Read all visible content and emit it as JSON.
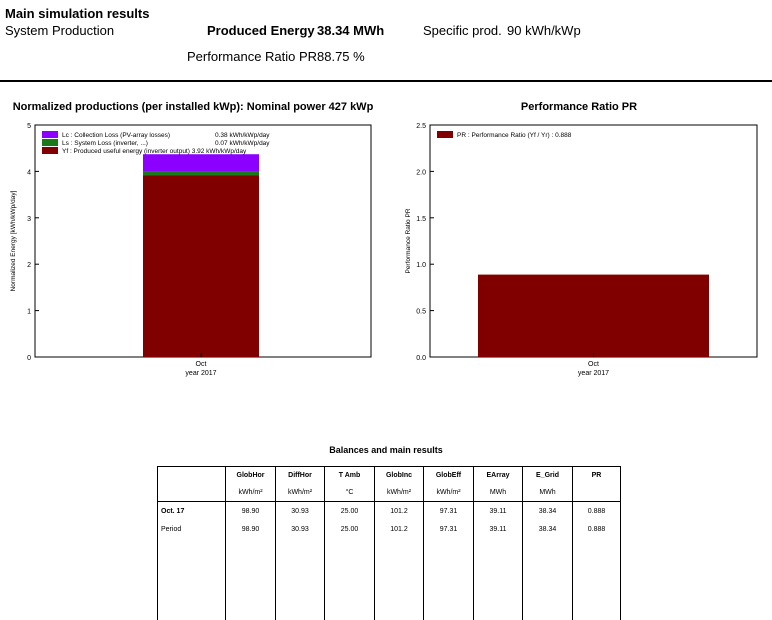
{
  "header": {
    "title": "Main simulation results",
    "system_production": "System Production",
    "produced_energy_label": "Produced Energy",
    "produced_energy_value": "38.34 MWh",
    "specific_prod_label": "Specific prod.",
    "specific_prod_value": "90 kWh/kWp",
    "performance_ratio_label": "Performance Ratio PR",
    "performance_ratio_value": "88.75 %"
  },
  "chart_data": [
    {
      "type": "bar",
      "stacked": true,
      "title": "Normalized productions (per installed kWp):  Nominal power 427 kWp",
      "ylabel": "Normalized Energy [kWh/kWp/day]",
      "xlabel": "year 2017",
      "categories": [
        "Oct"
      ],
      "ylim": [
        0,
        5
      ],
      "yticks": [
        "0",
        "1",
        "2",
        "3",
        "4",
        "5"
      ],
      "legend_position": "top-left",
      "series": [
        {
          "name": "Yf : Produced useful energy  (inverter output)  3.92 kWh/kWp/day",
          "values": [
            3.92
          ],
          "color": "#800000"
        },
        {
          "name": "Ls : System Loss  (inverter, ...)",
          "value_label": "0.07 kWh/kWp/day",
          "values": [
            0.07
          ],
          "color": "#1a7a1a"
        },
        {
          "name": "Lc : Collection Loss (PV-array losses)",
          "value_label": "0.38 kWh/kWp/day",
          "values": [
            0.38
          ],
          "color": "#8b00ff"
        }
      ]
    },
    {
      "type": "bar",
      "title": "Performance Ratio PR",
      "ylabel": "Performance Ratio PR",
      "xlabel": "year 2017",
      "categories": [
        "Oct"
      ],
      "ylim": [
        0,
        2.5
      ],
      "yticks": [
        "0.0",
        "0.5",
        "1.0",
        "1.5",
        "2.0",
        "2.5"
      ],
      "legend_position": "top-left",
      "series": [
        {
          "name": "PR : Performance Ratio (Yf / Yr) :  0.888",
          "values": [
            0.888
          ],
          "color": "#800000"
        }
      ]
    }
  ],
  "table": {
    "title": "Balances and main results",
    "columns": [
      "",
      "GlobHor",
      "DiffHor",
      "T Amb",
      "GlobInc",
      "GlobEff",
      "EArray",
      "E_Grid",
      "PR"
    ],
    "units": [
      "",
      "kWh/m²",
      "kWh/m²",
      "°C",
      "kWh/m²",
      "kWh/m²",
      "MWh",
      "MWh",
      ""
    ],
    "rows": [
      [
        "Oct.  17",
        "98.90",
        "30.93",
        "25.00",
        "101.2",
        "97.31",
        "39.11",
        "38.34",
        "0.888"
      ],
      [
        "Period",
        "98.90",
        "30.93",
        "25.00",
        "101.2",
        "97.31",
        "39.11",
        "38.34",
        "0.888"
      ]
    ]
  }
}
